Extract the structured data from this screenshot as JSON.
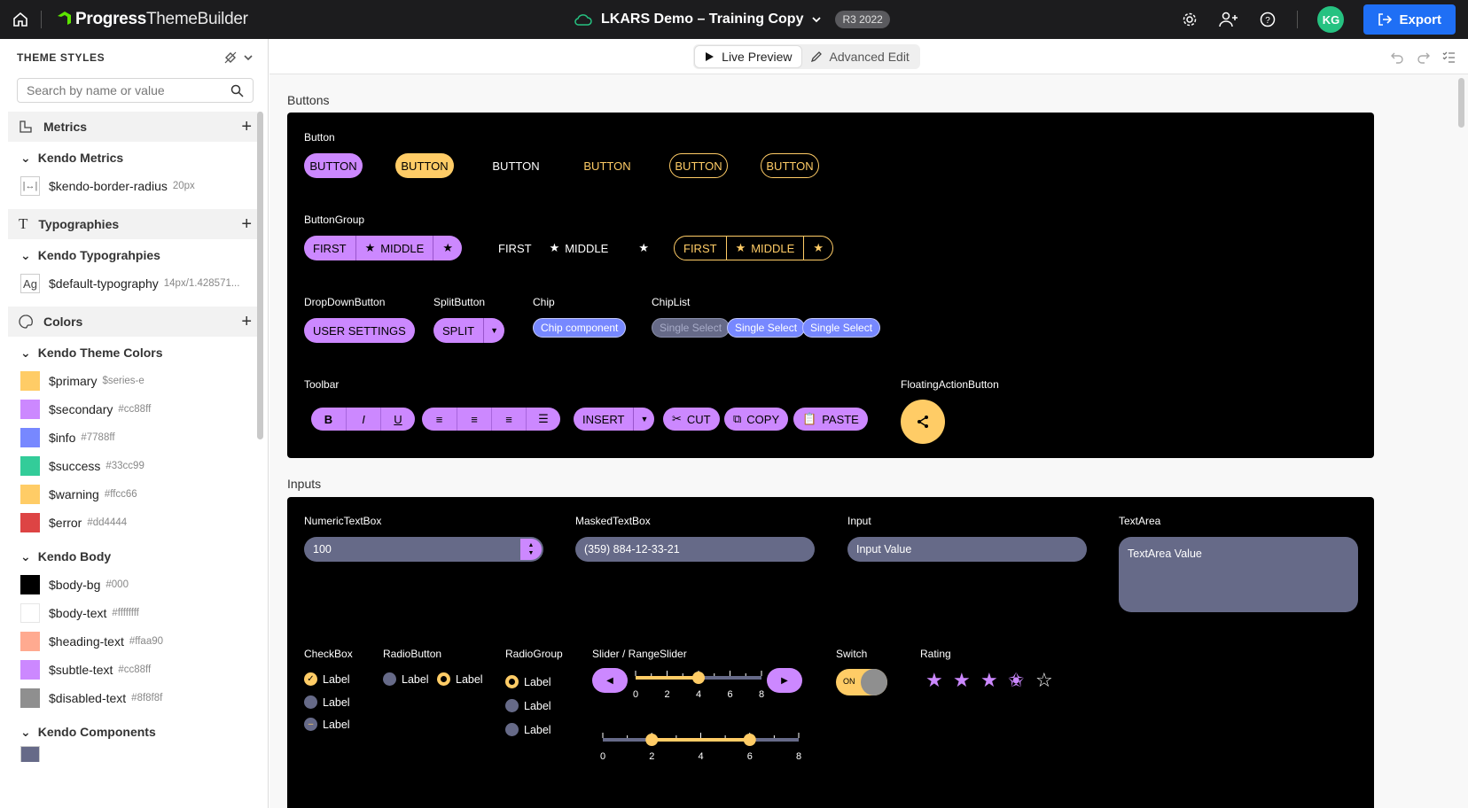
{
  "topbar": {
    "brand": "Progress",
    "product": "ThemeBuilder",
    "project_title": "LKARS Demo – Training Copy",
    "version_badge": "R3 2022",
    "avatar_initials": "KG",
    "export_label": "Export"
  },
  "sidebar": {
    "title": "THEME STYLES",
    "search_placeholder": "Search by name or value",
    "metrics": {
      "label": "Metrics",
      "sub": "Kendo Metrics",
      "items": [
        {
          "name": "$kendo-border-radius",
          "value": "20px"
        }
      ]
    },
    "typographies": {
      "label": "Typographies",
      "sub": "Kendo Typograhpies",
      "items": [
        {
          "name": "$default-typography",
          "value": "14px/1.428571..."
        }
      ]
    },
    "colors": {
      "label": "Colors",
      "theme_sub": "Kendo Theme Colors",
      "theme_items": [
        {
          "name": "$primary",
          "value": "$series-e",
          "color": "#ffcc66"
        },
        {
          "name": "$secondary",
          "value": "#cc88ff",
          "color": "#cc88ff"
        },
        {
          "name": "$info",
          "value": "#7788ff",
          "color": "#7788ff"
        },
        {
          "name": "$success",
          "value": "#33cc99",
          "color": "#33cc99"
        },
        {
          "name": "$warning",
          "value": "#ffcc66",
          "color": "#ffcc66"
        },
        {
          "name": "$error",
          "value": "#dd4444",
          "color": "#dd4444"
        }
      ],
      "body_sub": "Kendo Body",
      "body_items": [
        {
          "name": "$body-bg",
          "value": "#000",
          "color": "#000000"
        },
        {
          "name": "$body-text",
          "value": "#ffffffff",
          "color": "#ffffff"
        },
        {
          "name": "$heading-text",
          "value": "#ffaa90",
          "color": "#ffaa90"
        },
        {
          "name": "$subtle-text",
          "value": "#cc88ff",
          "color": "#cc88ff"
        },
        {
          "name": "$disabled-text",
          "value": "#8f8f8f",
          "color": "#8f8f8f"
        }
      ],
      "components_sub": "Kendo Components"
    }
  },
  "modes": {
    "live": "Live Preview",
    "advanced": "Advanced Edit"
  },
  "buttons_section": {
    "title": "Buttons",
    "button_label": "Button",
    "button_texts": [
      "BUTTON",
      "BUTTON",
      "BUTTON",
      "BUTTON",
      "BUTTON",
      "BUTTON"
    ],
    "buttongroup_label": "ButtonGroup",
    "bg_first": "FIRST",
    "bg_middle": "MIDDLE",
    "dropdown_label": "DropDownButton",
    "dropdown_text": "USER SETTINGS",
    "split_label": "SplitButton",
    "split_text": "SPLIT",
    "chip_label": "Chip",
    "chip_text": "Chip component",
    "chiplist_label": "ChipList",
    "chiplist_items": [
      "Single Select",
      "Single Select",
      "Single Select"
    ],
    "toolbar_label": "Toolbar",
    "toolbar": {
      "bold": "B",
      "italic": "I",
      "underline": "U",
      "insert": "INSERT",
      "cut": "CUT",
      "copy": "COPY",
      "paste": "PASTE"
    },
    "fab_label": "FloatingActionButton"
  },
  "inputs_section": {
    "title": "Inputs",
    "numeric_label": "NumericTextBox",
    "numeric_value": "100",
    "masked_label": "MaskedTextBox",
    "masked_value": "(359) 884-12-33-21",
    "input_label": "Input",
    "input_value": "Input Value",
    "textarea_label": "TextArea",
    "textarea_value": "TextArea Value",
    "checkbox_label": "CheckBox",
    "checkbox_items": [
      "Label",
      "Label",
      "Label"
    ],
    "radio_label": "RadioButton",
    "radio_items": [
      "Label",
      "Label"
    ],
    "radiogroup_label": "RadioGroup",
    "radiogroup_items": [
      "Label",
      "Label",
      "Label"
    ],
    "slider_label": "Slider / RangeSlider",
    "slider_ticks": [
      "0",
      "2",
      "4",
      "6",
      "8"
    ],
    "slider_value": 4,
    "range_values": [
      2,
      6
    ],
    "switch_label": "Switch",
    "switch_on": "ON",
    "rating_label": "Rating",
    "rating_value": 3.5
  }
}
